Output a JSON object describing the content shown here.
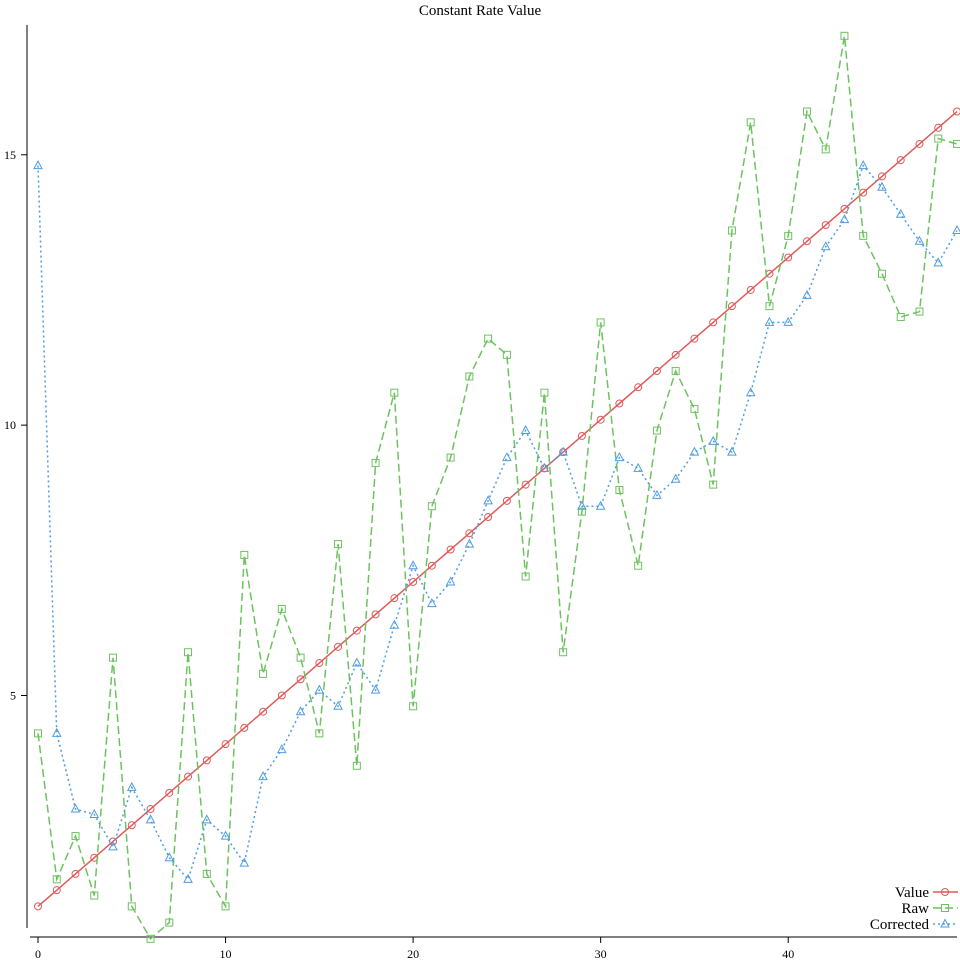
{
  "chart_data": {
    "type": "line",
    "title": "Constant Rate Value",
    "xlabel": "",
    "ylabel": "",
    "xlim": [
      -0.1,
      49
    ],
    "ylim": [
      0.7,
      17.4
    ],
    "x_ticks": [
      0,
      10,
      20,
      30,
      40
    ],
    "y_ticks": [
      5,
      10,
      15
    ],
    "grid": false,
    "legend_position": "bottom-right",
    "series": [
      {
        "name": "Value",
        "color": "#e05a5a",
        "dash": "solid",
        "marker": "circle",
        "x": [
          0,
          1,
          2,
          3,
          4,
          5,
          6,
          7,
          8,
          9,
          10,
          11,
          12,
          13,
          14,
          15,
          16,
          17,
          18,
          19,
          20,
          21,
          22,
          23,
          24,
          25,
          26,
          27,
          28,
          29,
          30,
          31,
          32,
          33,
          34,
          35,
          36,
          37,
          38,
          39,
          40,
          41,
          42,
          43,
          44,
          45,
          46,
          47,
          48,
          49
        ],
        "values": [
          1.1,
          1.4,
          1.7,
          2.0,
          2.3,
          2.6,
          2.9,
          3.2,
          3.5,
          3.8,
          4.1,
          4.4,
          4.7,
          5.0,
          5.3,
          5.6,
          5.9,
          6.2,
          6.5,
          6.8,
          7.1,
          7.4,
          7.7,
          8.0,
          8.3,
          8.6,
          8.9,
          9.2,
          9.5,
          9.8,
          10.1,
          10.4,
          10.7,
          11.0,
          11.3,
          11.6,
          11.9,
          12.2,
          12.5,
          12.8,
          13.1,
          13.4,
          13.7,
          14.0,
          14.3,
          14.6,
          14.9,
          15.2,
          15.5,
          15.8
        ]
      },
      {
        "name": "Raw",
        "color": "#6cc35e",
        "dash": "long",
        "marker": "square",
        "x": [
          0,
          1,
          2,
          3,
          4,
          5,
          6,
          7,
          8,
          9,
          10,
          11,
          12,
          13,
          14,
          15,
          16,
          17,
          18,
          19,
          20,
          21,
          22,
          23,
          24,
          25,
          26,
          27,
          28,
          29,
          30,
          31,
          32,
          33,
          34,
          35,
          36,
          37,
          38,
          39,
          40,
          41,
          42,
          43,
          44,
          45,
          46,
          47,
          48,
          49
        ],
        "values": [
          4.3,
          1.6,
          2.4,
          1.3,
          5.7,
          1.1,
          0.5,
          0.8,
          5.8,
          1.7,
          1.1,
          7.6,
          5.4,
          6.6,
          5.7,
          4.3,
          7.8,
          3.7,
          9.3,
          10.6,
          4.8,
          8.5,
          9.4,
          10.9,
          11.6,
          11.3,
          7.2,
          10.6,
          5.8,
          8.4,
          11.9,
          8.8,
          7.4,
          9.9,
          11.0,
          10.3,
          8.9,
          13.6,
          15.6,
          12.2,
          13.5,
          15.8,
          15.1,
          17.2,
          13.5,
          12.8,
          12.0,
          12.1,
          15.3,
          15.2
        ]
      },
      {
        "name": "Corrected",
        "color": "#4f9ce0",
        "dash": "dotted",
        "marker": "triangle",
        "x": [
          0,
          1,
          2,
          3,
          4,
          5,
          6,
          7,
          8,
          9,
          10,
          11,
          12,
          13,
          14,
          15,
          16,
          17,
          18,
          19,
          20,
          21,
          22,
          23,
          24,
          25,
          26,
          27,
          28,
          29,
          30,
          31,
          32,
          33,
          34,
          35,
          36,
          37,
          38,
          39,
          40,
          41,
          42,
          43,
          44,
          45,
          46,
          47,
          48,
          49
        ],
        "values": [
          14.8,
          4.3,
          2.9,
          2.8,
          2.2,
          3.3,
          2.7,
          2.0,
          1.6,
          2.7,
          2.4,
          1.9,
          3.5,
          4.0,
          4.7,
          5.1,
          4.8,
          5.6,
          5.1,
          6.3,
          7.4,
          6.7,
          7.1,
          7.8,
          8.6,
          9.4,
          9.9,
          9.2,
          9.5,
          8.5,
          8.5,
          9.4,
          9.2,
          8.7,
          9.0,
          9.5,
          9.7,
          9.5,
          10.6,
          11.9,
          11.9,
          12.4,
          13.3,
          13.8,
          14.8,
          14.4,
          13.9,
          13.4,
          13.0,
          13.6
        ]
      }
    ]
  }
}
